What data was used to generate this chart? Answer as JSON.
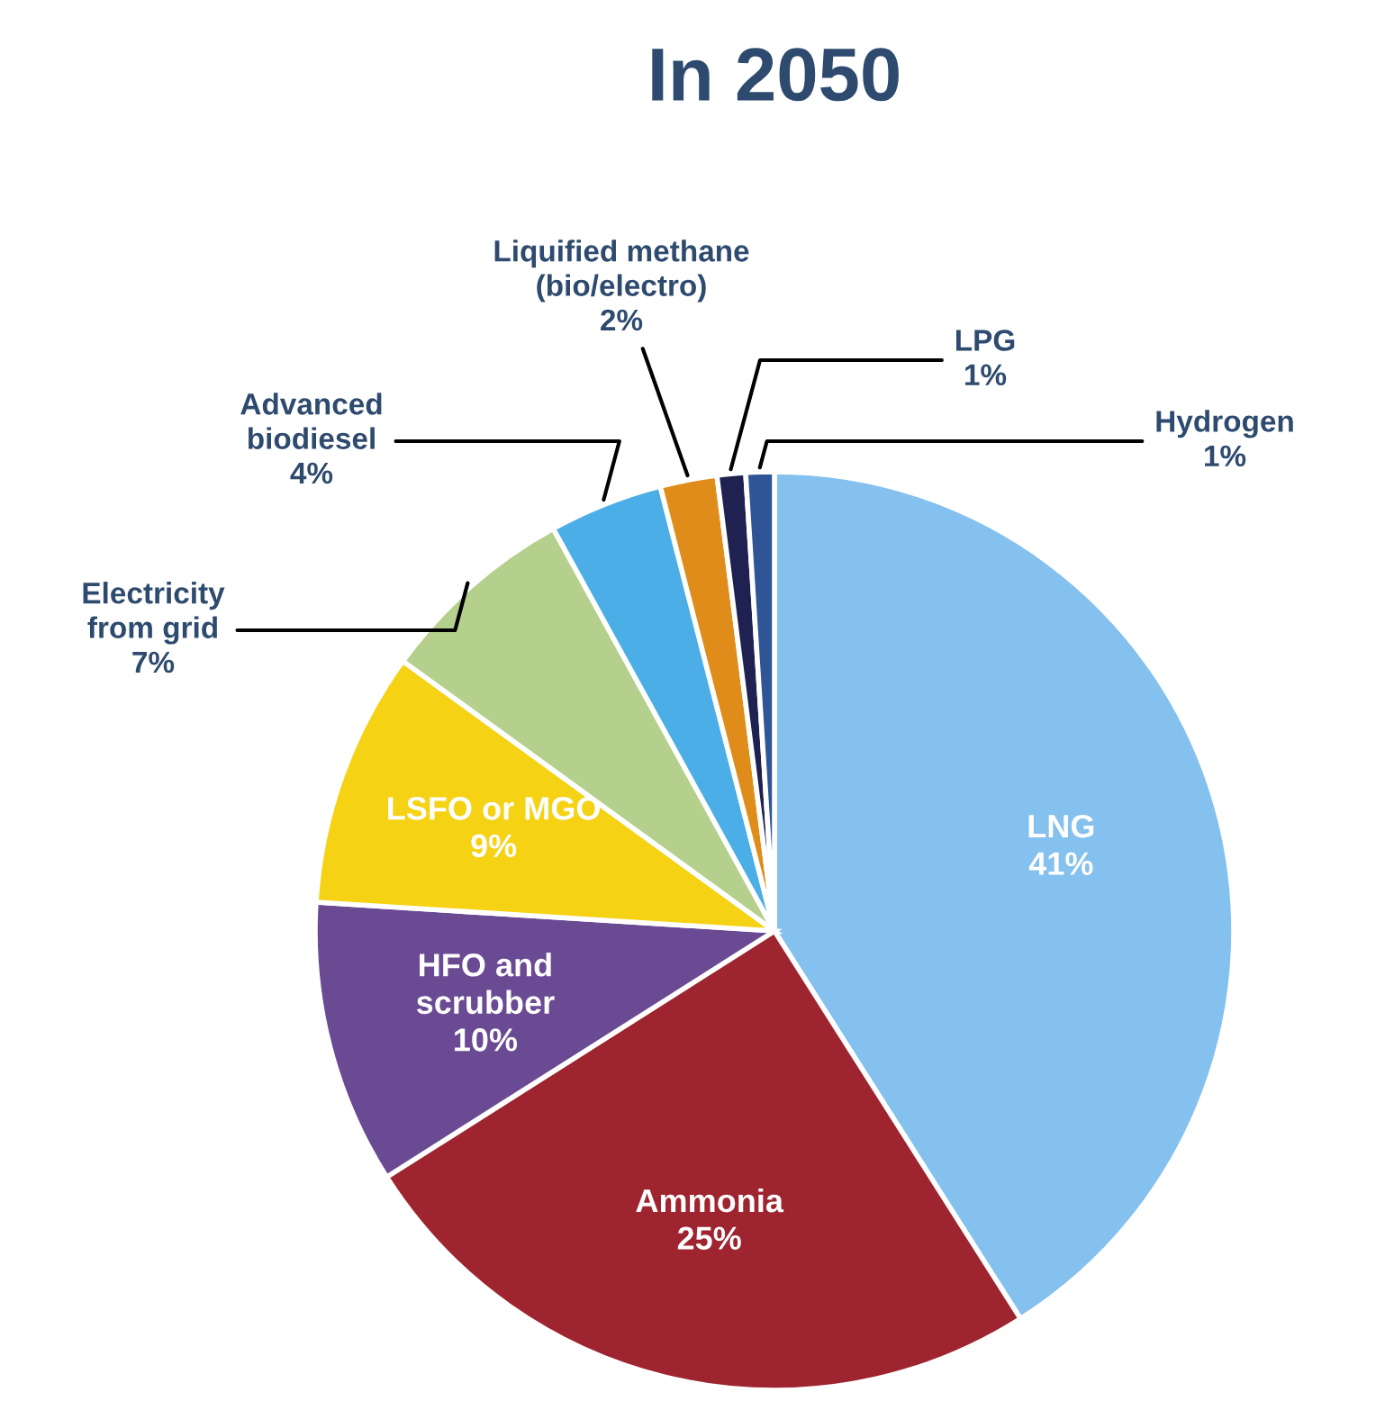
{
  "chart_data": {
    "type": "pie",
    "title": "In 2050",
    "categories": [
      "LNG",
      "Ammonia",
      "HFO and\nscrubber",
      "LSFO or MGO",
      "Electricity\nfrom grid",
      "Advanced\nbiodiesel",
      "Liquified methane\n(bio/electro)",
      "LPG",
      "Hydrogen"
    ],
    "values": [
      41,
      25,
      10,
      9,
      7,
      4,
      2,
      1,
      1
    ],
    "value_labels": [
      "41%",
      "25%",
      "10%",
      "9%",
      "7%",
      "4%",
      "2%",
      "1%",
      "1%"
    ],
    "colors": [
      "#85c1ee",
      "#9e252f",
      "#6a4a93",
      "#f5d214",
      "#b5cf8c",
      "#4baee6",
      "#e08c1a",
      "#1f2150",
      "#2f5597"
    ]
  }
}
